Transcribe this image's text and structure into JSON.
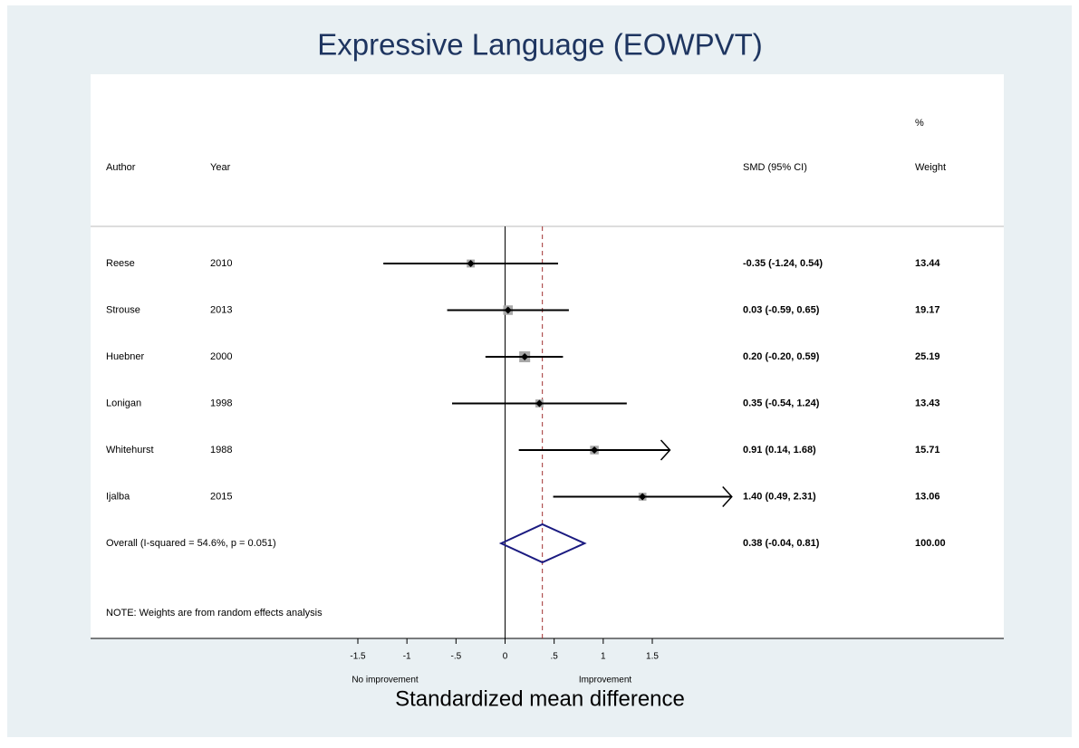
{
  "chart_data": {
    "type": "forest",
    "title": "Expressive Language (EOWPVT)",
    "headers": {
      "author": "Author",
      "year": "Year",
      "ci": "SMD (95% CI)",
      "weight_top": "%",
      "weight": "Weight"
    },
    "studies": [
      {
        "author": "Reese",
        "year": "2010",
        "value": -0.35,
        "lower": -1.24,
        "upper": 0.54,
        "ci_label": "-0.35 (-1.24, 0.54)",
        "weight": 13.44
      },
      {
        "author": "Strouse",
        "year": "2013",
        "value": 0.03,
        "lower": -0.59,
        "upper": 0.65,
        "ci_label": "0.03 (-0.59, 0.65)",
        "weight": 19.17
      },
      {
        "author": "Huebner",
        "year": "2000",
        "value": 0.2,
        "lower": -0.2,
        "upper": 0.59,
        "ci_label": "0.20 (-0.20, 0.59)",
        "weight": 25.19
      },
      {
        "author": "Lonigan",
        "year": "1998",
        "value": 0.35,
        "lower": -0.54,
        "upper": 1.24,
        "ci_label": "0.35 (-0.54, 1.24)",
        "weight": 13.43
      },
      {
        "author": "Whitehurst",
        "year": "1988",
        "value": 0.91,
        "lower": 0.14,
        "upper": 1.68,
        "ci_label": "0.91 (0.14, 1.68)",
        "weight": 15.71
      },
      {
        "author": "Ijalba",
        "year": "2015",
        "value": 1.4,
        "lower": 0.49,
        "upper": 2.31,
        "ci_label": "1.40 (0.49, 2.31)",
        "weight": 13.06
      }
    ],
    "overall": {
      "label": "Overall  (I-squared = 54.6%, p = 0.051)",
      "value": 0.38,
      "lower": -0.04,
      "upper": 0.81,
      "ci_label": "0.38 (-0.04, 0.81)",
      "weight": {
        "value": 100,
        "label": "100.00"
      }
    },
    "note": "NOTE: Weights are from random effects analysis",
    "xlim": [
      -1.5,
      1.5
    ],
    "xticks": [
      -1.5,
      -1,
      {
        "value": -0.5,
        "label": "-.5"
      },
      0,
      {
        "value": 0.5,
        "label": ".5"
      },
      1,
      1.5
    ],
    "x_left_label": "No improvement",
    "x_right_label": "Improvement",
    "x_label": "Standardized mean difference",
    "box_color": "#a8a8a8",
    "diamond_color": "#1a1a80",
    "ref_color": "#a03030"
  }
}
